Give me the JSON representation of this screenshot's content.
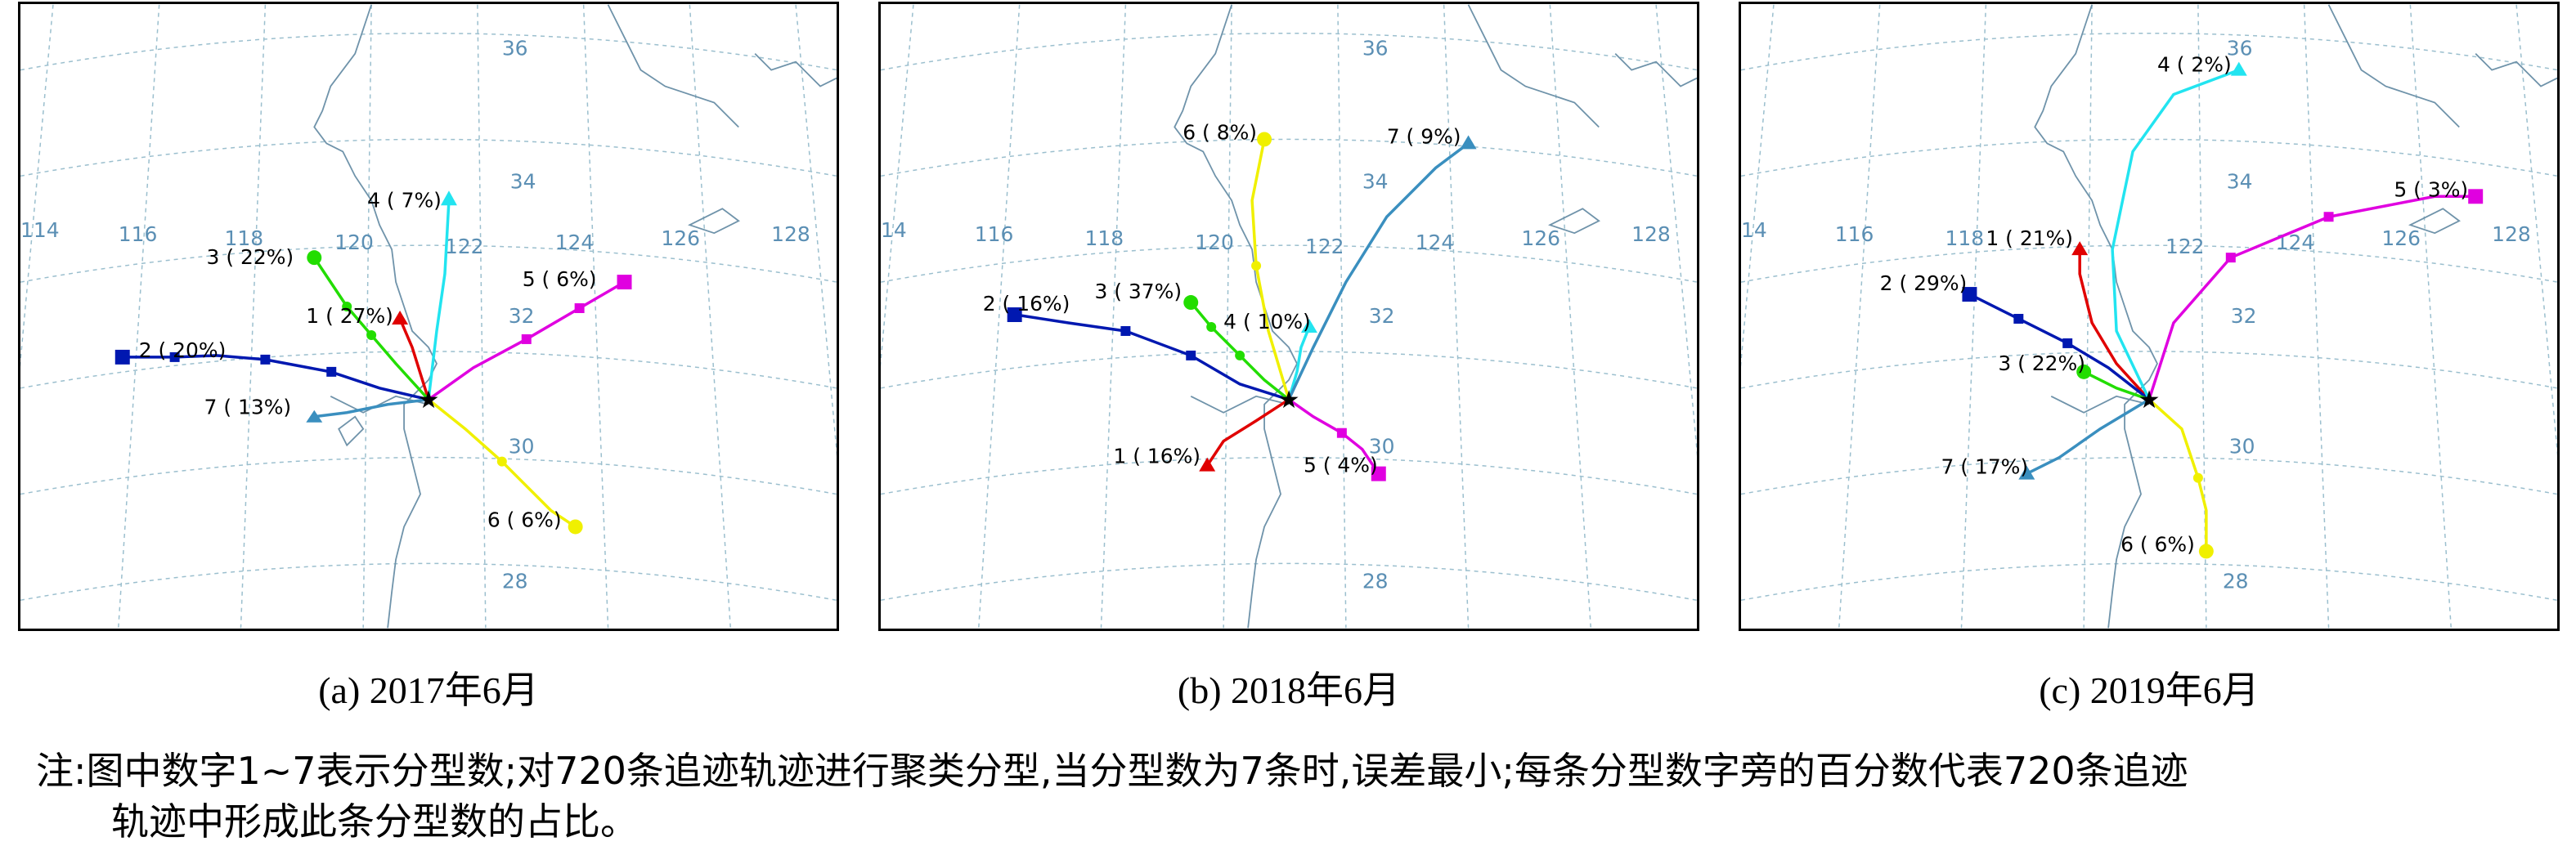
{
  "panels": [
    {
      "caption": "(a) 2017年6月",
      "lat_labels": [
        "36",
        "34",
        "32",
        "30",
        "28"
      ],
      "lon_labels": [
        "114",
        "116",
        "118",
        "120",
        "122",
        "124",
        "126",
        "128"
      ],
      "tracks": [
        {
          "id": "1",
          "label": "1 ( 27%)",
          "color": "#e00000",
          "marker": "triangle"
        },
        {
          "id": "2",
          "label": "2 ( 20%)",
          "color": "#0018b0",
          "marker": "square"
        },
        {
          "id": "3",
          "label": "3 ( 22%)",
          "color": "#22dd00",
          "marker": "circle"
        },
        {
          "id": "4",
          "label": "4 (  7%)",
          "color": "#22e4f0",
          "marker": "triangle"
        },
        {
          "id": "5",
          "label": "5 (  6%)",
          "color": "#e000e0",
          "marker": "square"
        },
        {
          "id": "6",
          "label": "6 (  6%)",
          "color": "#f0f000",
          "marker": "circle"
        },
        {
          "id": "7",
          "label": "7 ( 13%)",
          "color": "#3a8fbf",
          "marker": "triangle"
        }
      ]
    },
    {
      "caption": "(b) 2018年6月",
      "lat_labels": [
        "36",
        "34",
        "32",
        "30",
        "28"
      ],
      "lon_labels": [
        "14",
        "116",
        "118",
        "120",
        "122",
        "124",
        "126",
        "128"
      ],
      "tracks": [
        {
          "id": "1",
          "label": "1 ( 16%)",
          "color": "#e00000",
          "marker": "triangle"
        },
        {
          "id": "2",
          "label": "2 ( 16%)",
          "color": "#0018b0",
          "marker": "square"
        },
        {
          "id": "3",
          "label": "3 ( 37%)",
          "color": "#22dd00",
          "marker": "circle"
        },
        {
          "id": "4",
          "label": "4 ( 10%)",
          "color": "#22e4f0",
          "marker": "triangle"
        },
        {
          "id": "5",
          "label": "5 (  4%)",
          "color": "#e000e0",
          "marker": "square"
        },
        {
          "id": "6",
          "label": "6 (  8%)",
          "color": "#f0f000",
          "marker": "circle"
        },
        {
          "id": "7",
          "label": "7 (  9%)",
          "color": "#3a8fbf",
          "marker": "triangle"
        }
      ]
    },
    {
      "caption": "(c) 2019年6月",
      "lat_labels": [
        "36",
        "34",
        "32",
        "30",
        "28"
      ],
      "lon_labels": [
        "14",
        "116",
        "118",
        "122",
        "124",
        "126",
        "128"
      ],
      "tracks": [
        {
          "id": "1",
          "label": "1 ( 21%)",
          "color": "#e00000",
          "marker": "triangle"
        },
        {
          "id": "2",
          "label": "2 ( 29%)",
          "color": "#0018b0",
          "marker": "square"
        },
        {
          "id": "3",
          "label": "3 ( 22%)",
          "color": "#22dd00",
          "marker": "circle"
        },
        {
          "id": "4",
          "label": "4 (  2%)",
          "color": "#22e4f0",
          "marker": "triangle"
        },
        {
          "id": "5",
          "label": "5 (  3%)",
          "color": "#e000e0",
          "marker": "square"
        },
        {
          "id": "6",
          "label": "6 (  6%)",
          "color": "#f0f000",
          "marker": "circle"
        },
        {
          "id": "7",
          "label": "7 ( 17%)",
          "color": "#3a8fbf",
          "marker": "triangle"
        }
      ]
    }
  ],
  "note": {
    "line1": "注:图中数字1~7表示分型数;对720条追迹轨迹进行聚类分型,当分型数为7条时,误差最小;每条分型数字旁的百分数代表720条追迹",
    "line2": "轨迹中形成此条分型数的占比。"
  }
}
